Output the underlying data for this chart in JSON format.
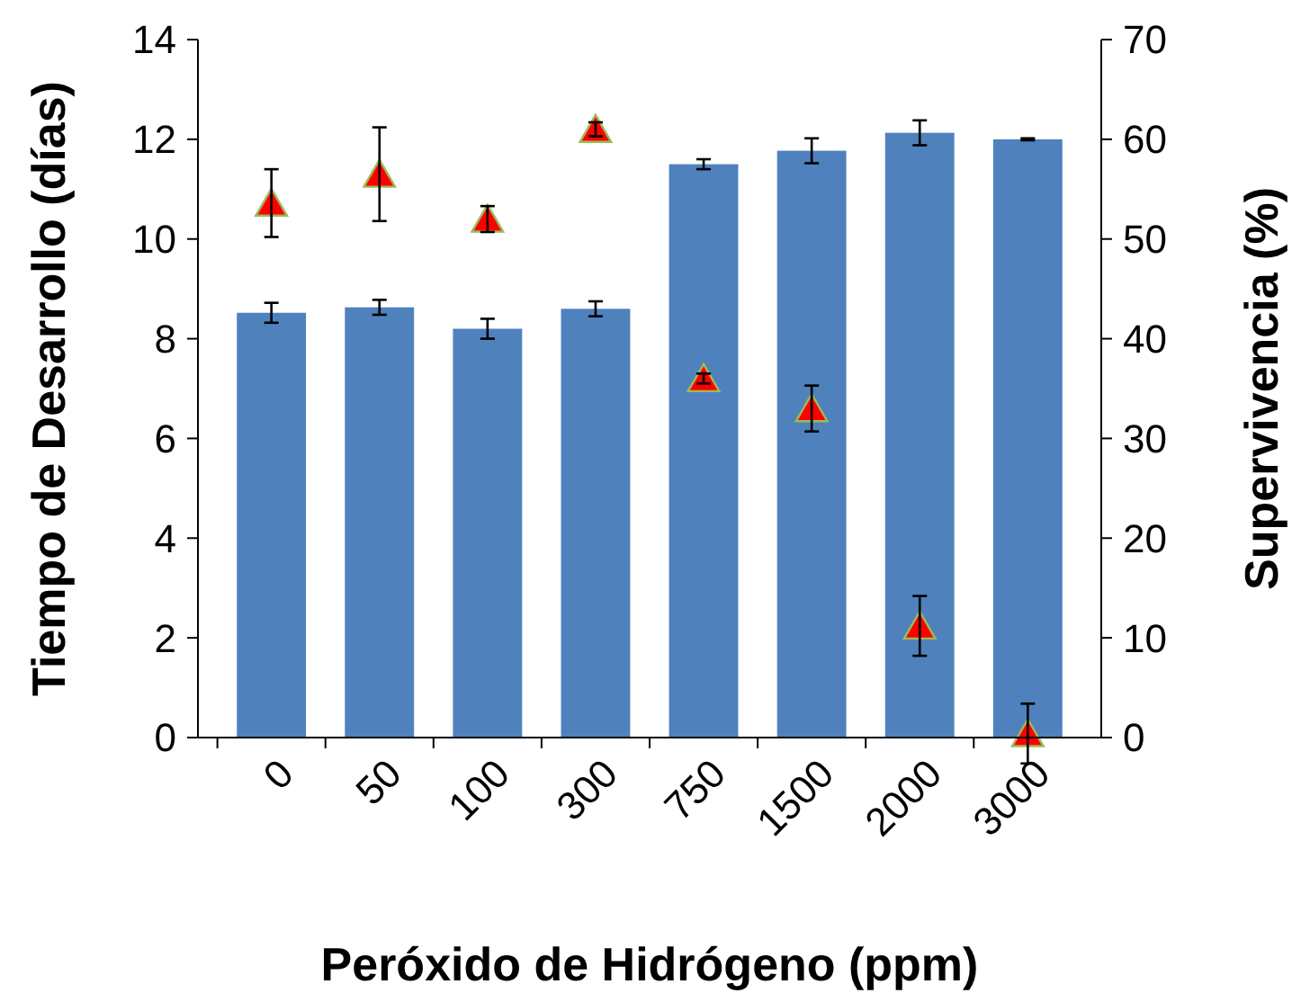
{
  "chart_data": {
    "type": "bar",
    "xlabel": "Peróxido de Hidrógeno (ppm)",
    "ylabel": "Tiempo de Desarrollo (días)",
    "y2label": "Supervivencia (%)",
    "categories": [
      "0",
      "50",
      "100",
      "300",
      "750",
      "1500",
      "2000",
      "3000"
    ],
    "series": [
      {
        "color": "#4f81bd",
        "values": [
          8.52,
          8.63,
          8.2,
          8.6,
          11.5,
          11.77,
          12.13,
          12.0
        ],
        "errors": [
          0.2,
          0.15,
          0.2,
          0.15,
          0.1,
          0.25,
          0.25,
          0.02
        ]
      },
      {
        "type": "scatter",
        "axis": "y2",
        "color": "#ff0000",
        "marker": "triangle",
        "values": [
          53.6,
          56.5,
          52,
          61,
          36,
          33,
          11.2,
          0.4
        ],
        "errors": [
          3.4,
          4.7,
          1.3,
          0.7,
          0.5,
          2.3,
          3,
          3
        ]
      }
    ],
    "ylim": [
      0,
      14
    ],
    "yticks": [
      0,
      2,
      4,
      6,
      8,
      10,
      12,
      14
    ],
    "y2lim": [
      0,
      70
    ],
    "y2ticks": [
      0,
      10,
      20,
      30,
      40,
      50,
      60,
      70
    ],
    "grid": false
  }
}
